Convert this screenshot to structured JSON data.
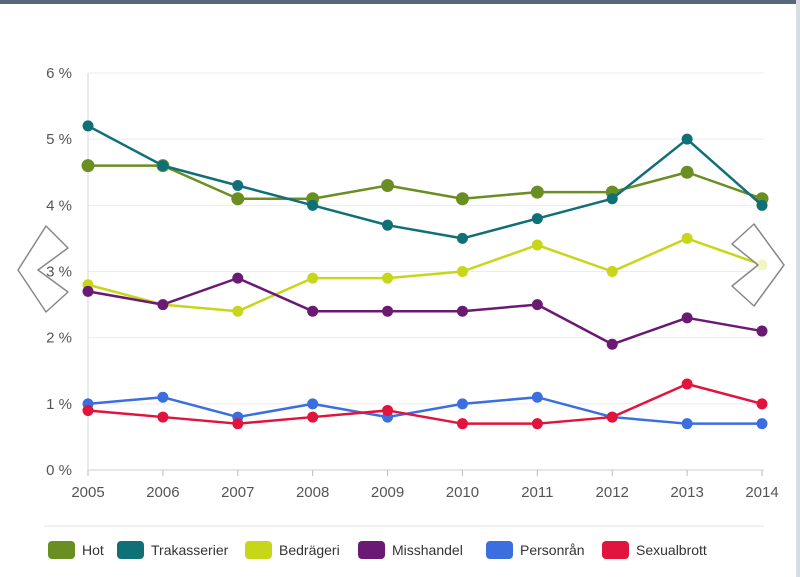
{
  "chart_data": {
    "type": "line",
    "title": "",
    "xlabel": "",
    "ylabel": "",
    "ylim": [
      0,
      6
    ],
    "y_ticks": [
      "0 %",
      "1 %",
      "2 %",
      "3 %",
      "4 %",
      "5 %",
      "6 %"
    ],
    "categories": [
      "2005",
      "2006",
      "2007",
      "2008",
      "2009",
      "2010",
      "2011",
      "2012",
      "2013",
      "2014"
    ],
    "grid": true,
    "legend_position": "bottom",
    "series": [
      {
        "name": "Hot",
        "color": "#6b8e23",
        "values": [
          4.6,
          4.6,
          4.1,
          4.1,
          4.3,
          4.1,
          4.2,
          4.2,
          4.5,
          4.1
        ]
      },
      {
        "name": "Trakasserier",
        "color": "#0f7078",
        "values": [
          5.2,
          4.6,
          4.3,
          4.0,
          3.7,
          3.5,
          3.8,
          4.1,
          5.0,
          4.0
        ]
      },
      {
        "name": "Bedrägeri",
        "color": "#c8d61a",
        "values": [
          2.8,
          2.5,
          2.4,
          2.9,
          2.9,
          3.0,
          3.4,
          3.0,
          3.5,
          3.1
        ]
      },
      {
        "name": "Misshandel",
        "color": "#6a1a72",
        "values": [
          2.7,
          2.5,
          2.9,
          2.4,
          2.4,
          2.4,
          2.5,
          1.9,
          2.3,
          2.1
        ]
      },
      {
        "name": "Personrån",
        "color": "#3b6fe0",
        "values": [
          1.0,
          1.1,
          0.8,
          1.0,
          0.8,
          1.0,
          1.1,
          0.8,
          0.7,
          0.7
        ]
      },
      {
        "name": "Sexualbrott",
        "color": "#e0143c",
        "values": [
          0.9,
          0.8,
          0.7,
          0.8,
          0.9,
          0.7,
          0.7,
          0.8,
          1.3,
          1.0
        ]
      }
    ]
  },
  "navigation": {
    "prev_icon": "chevron-left-icon",
    "next_icon": "chevron-right-icon"
  }
}
